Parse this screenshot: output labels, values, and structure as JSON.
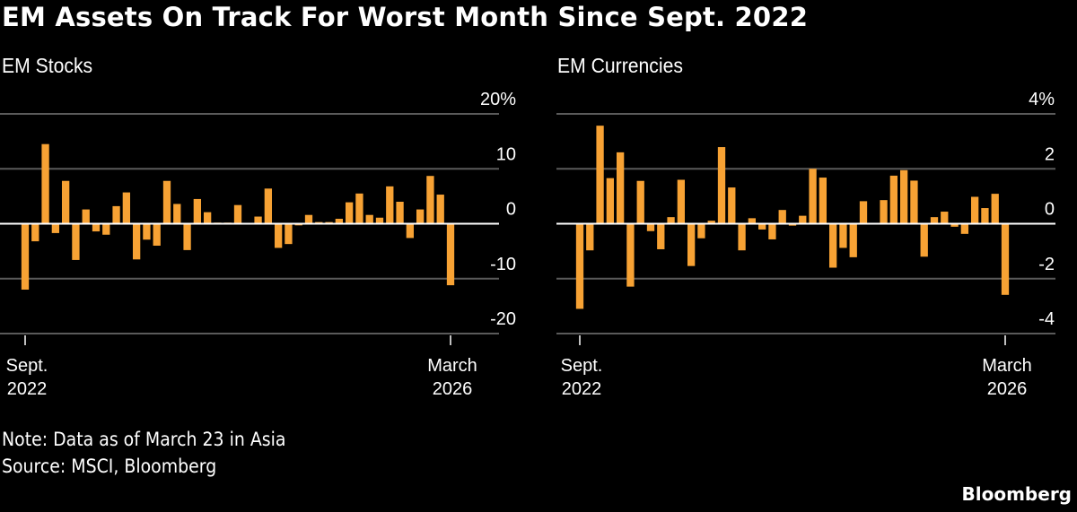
{
  "title": "EM Assets On Track For Worst Month Since Sept. 2022",
  "note": "Note: Data as of March 23 in Asia",
  "source": "Source: MSCI, Bloomberg",
  "brand": "Bloomberg",
  "colors": {
    "bar": "#f7a234",
    "background": "#000000",
    "grid": "#5a5a5a",
    "zero_line": "#ffffff"
  },
  "chart_data": [
    {
      "type": "bar",
      "title": "EM Stocks",
      "x_range": [
        "Sept. 2022",
        "March 2026"
      ],
      "x_tick_labels": [
        [
          "Sept.",
          "2022"
        ],
        [
          "March",
          "2026"
        ]
      ],
      "y_ticks": [
        20,
        10,
        0,
        -10,
        -20
      ],
      "y_tick_labels": [
        "20%",
        "10",
        "0",
        "-10",
        "-20"
      ],
      "ylim": [
        -20,
        20
      ],
      "grid": true,
      "values": [
        -12.0,
        -3.2,
        14.5,
        -1.7,
        7.8,
        -6.6,
        2.6,
        -1.4,
        -2.0,
        3.2,
        5.7,
        -6.5,
        -2.9,
        -4.0,
        7.8,
        3.6,
        -4.8,
        4.5,
        2.1,
        0.2,
        0.2,
        3.4,
        0.0,
        1.3,
        6.4,
        -4.4,
        -3.7,
        -0.3,
        1.6,
        0.3,
        0.3,
        0.9,
        3.9,
        5.5,
        1.6,
        1.1,
        6.8,
        4.0,
        -2.6,
        2.6,
        8.7,
        5.3,
        -11.2
      ]
    },
    {
      "type": "bar",
      "title": "EM Currencies",
      "x_range": [
        "Sept. 2022",
        "March 2026"
      ],
      "x_tick_labels": [
        [
          "Sept.",
          "2022"
        ],
        [
          "March",
          "2026"
        ]
      ],
      "y_ticks": [
        4,
        2,
        0,
        -2,
        -4
      ],
      "y_tick_labels": [
        "4%",
        "2",
        "0",
        "-2",
        "-4"
      ],
      "ylim": [
        -4,
        4
      ],
      "grid": true,
      "values": [
        -3.1,
        -0.97,
        3.57,
        1.66,
        2.6,
        -2.29,
        1.56,
        -0.27,
        -0.93,
        0.24,
        1.6,
        -1.54,
        -0.53,
        0.11,
        2.79,
        1.32,
        -0.97,
        0.2,
        -0.21,
        -0.57,
        0.5,
        -0.07,
        0.29,
        2.0,
        1.68,
        -1.6,
        -0.88,
        -1.22,
        0.82,
        -0.02,
        0.86,
        1.75,
        1.95,
        1.57,
        -1.2,
        0.24,
        0.44,
        -0.11,
        -0.37,
        0.98,
        0.57,
        1.09,
        -2.59
      ]
    }
  ]
}
